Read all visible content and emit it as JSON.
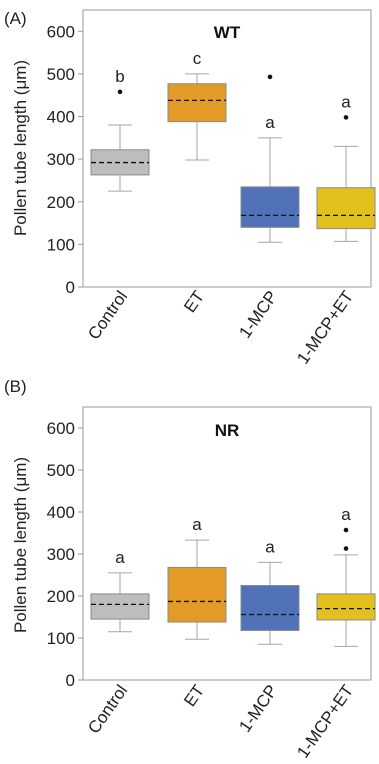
{
  "chart_data": [
    {
      "type": "box",
      "panel_label": "(A)",
      "title": "WT",
      "ylabel": "Pollen tube length (μm)",
      "ylim": [
        0,
        650
      ],
      "yticks": [
        0,
        100,
        200,
        300,
        400,
        500,
        600
      ],
      "categories": [
        "Control",
        "ET",
        "1-MCP",
        "1-MCP+ET"
      ],
      "colors": [
        "#bdbdbd",
        "#e39a26",
        "#4f72b8",
        "#e2c01e"
      ],
      "boxes": [
        {
          "min": 225,
          "q1": 263,
          "mean": 292,
          "q3": 322,
          "max": 380,
          "outliers": [
            458
          ],
          "letter": "b"
        },
        {
          "min": 298,
          "q1": 388,
          "mean": 438,
          "q3": 477,
          "max": 500,
          "outliers": [],
          "letter": "c"
        },
        {
          "min": 105,
          "q1": 140,
          "mean": 168,
          "q3": 235,
          "max": 350,
          "outliers": [
            493
          ],
          "letter": "a"
        },
        {
          "min": 107,
          "q1": 137,
          "mean": 168,
          "q3": 233,
          "max": 330,
          "outliers": [
            398
          ],
          "letter": "a"
        }
      ]
    },
    {
      "type": "box",
      "panel_label": "(B)",
      "title": "NR",
      "ylabel": "Pollen tube length (μm)",
      "ylim": [
        0,
        650
      ],
      "yticks": [
        0,
        100,
        200,
        300,
        400,
        500,
        600
      ],
      "categories": [
        "Control",
        "ET",
        "1-MCP",
        "1-MCP+ET"
      ],
      "colors": [
        "#bdbdbd",
        "#e39a26",
        "#4f72b8",
        "#e2c01e"
      ],
      "boxes": [
        {
          "min": 115,
          "q1": 145,
          "mean": 180,
          "q3": 205,
          "max": 255,
          "outliers": [],
          "letter": "a"
        },
        {
          "min": 97,
          "q1": 138,
          "mean": 187,
          "q3": 268,
          "max": 333,
          "outliers": [],
          "letter": "a"
        },
        {
          "min": 85,
          "q1": 118,
          "mean": 156,
          "q3": 225,
          "max": 280,
          "outliers": [],
          "letter": "a"
        },
        {
          "min": 80,
          "q1": 143,
          "mean": 170,
          "q3": 205,
          "max": 298,
          "outliers": [
            313,
            357
          ],
          "letter": "a"
        }
      ]
    }
  ]
}
